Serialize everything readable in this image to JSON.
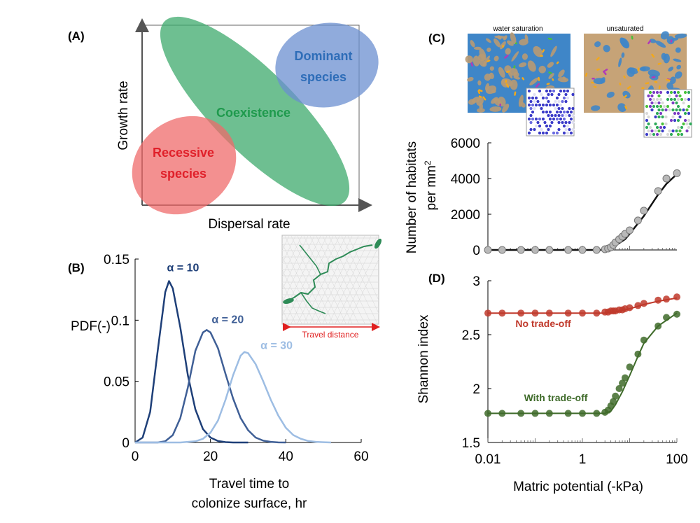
{
  "chart_data": [
    {
      "type": "concept-diagram",
      "panel": "(A)",
      "xlabel": "Dispersal rate",
      "ylabel": "Growth rate",
      "regions": [
        {
          "label": "Recessive species",
          "color": "#ef6b6b"
        },
        {
          "label": "Coexistence",
          "color": "#3daa6c"
        },
        {
          "label": "Dominant species",
          "color": "#6b8fd0"
        }
      ],
      "region_text_colors": [
        "#e0202a",
        "#1f9a4d",
        "#2e6db8"
      ]
    },
    {
      "type": "line",
      "panel": "(B)",
      "ylabel": "PDF(-)",
      "xlabel_line1": "Travel time to",
      "xlabel_line2": "colonize surface, hr",
      "xlim": [
        0,
        60
      ],
      "ylim": [
        0,
        0.15
      ],
      "xticks": [
        "0",
        "20",
        "40",
        "60"
      ],
      "yticks": [
        "0",
        "0.05",
        "0.1",
        "0.15"
      ],
      "inset_label": "Travel distance",
      "series": [
        {
          "name": "α = 10",
          "mean": 9,
          "peak": 0.132,
          "color": "#1e3f78",
          "x": [
            0,
            2,
            4,
            6,
            8,
            9,
            10,
            12,
            14,
            16,
            18,
            20,
            22,
            24,
            26,
            28,
            30
          ],
          "y": [
            0,
            0.004,
            0.025,
            0.075,
            0.123,
            0.132,
            0.126,
            0.094,
            0.055,
            0.027,
            0.011,
            0.004,
            0.0012,
            0.0003,
            0,
            0,
            0
          ]
        },
        {
          "name": "α = 20",
          "mean": 19,
          "peak": 0.092,
          "color": "#3f5f96",
          "x": [
            0,
            6,
            8,
            10,
            12,
            14,
            16,
            18,
            19,
            20,
            22,
            24,
            26,
            28,
            30,
            32,
            34,
            36,
            38,
            40
          ],
          "y": [
            0,
            0,
            0.001,
            0.006,
            0.02,
            0.045,
            0.075,
            0.09,
            0.092,
            0.09,
            0.077,
            0.056,
            0.036,
            0.02,
            0.01,
            0.004,
            0.0015,
            0.0005,
            0.0001,
            0
          ]
        },
        {
          "name": "α = 30",
          "mean": 29,
          "peak": 0.074,
          "color": "#9dbde3",
          "x": [
            0,
            12,
            16,
            18,
            20,
            22,
            24,
            26,
            28,
            29,
            30,
            32,
            34,
            36,
            38,
            40,
            42,
            44,
            46,
            48,
            50,
            52
          ],
          "y": [
            0,
            0,
            0.001,
            0.003,
            0.008,
            0.018,
            0.035,
            0.055,
            0.071,
            0.074,
            0.073,
            0.064,
            0.05,
            0.035,
            0.022,
            0.012,
            0.006,
            0.003,
            0.0012,
            0.0005,
            0.0002,
            0
          ]
        }
      ]
    },
    {
      "type": "scatter+line",
      "panel": "(C)",
      "ylabel_line1": "Number of habitats",
      "ylabel_line2": "per mm",
      "ylabel_sup": "2",
      "ylim": [
        0,
        6000
      ],
      "yticks": [
        "0",
        "2000",
        "4000",
        "6000"
      ],
      "image_titles": [
        "water saturation",
        "unsaturated"
      ],
      "points_x": [
        0.01,
        0.02,
        0.05,
        0.1,
        0.2,
        0.5,
        1,
        2,
        3,
        3.5,
        4,
        4.5,
        5,
        6,
        7,
        8,
        10,
        15,
        20,
        40,
        60,
        100
      ],
      "points_y": [
        0,
        0,
        0,
        0,
        0,
        0,
        0,
        0,
        40,
        80,
        150,
        280,
        420,
        600,
        750,
        900,
        1100,
        1650,
        2200,
        3300,
        4000,
        4300
      ],
      "fit_x": [
        0.01,
        3,
        5,
        8,
        10,
        20,
        40,
        60,
        100
      ],
      "fit_y": [
        0,
        0,
        250,
        600,
        900,
        1900,
        3100,
        3700,
        4250
      ]
    },
    {
      "type": "scatter+line",
      "panel": "(D)",
      "xlabel": "Matric potential (-kPa)",
      "ylabel": "Shannon index",
      "xscale": "log",
      "xlim": [
        0.01,
        100
      ],
      "ylim": [
        1.5,
        3
      ],
      "xticks": [
        "0.01",
        "1",
        "100"
      ],
      "yticks": [
        "1.5",
        "2",
        "2.5",
        "3"
      ],
      "series": [
        {
          "name": "No trade-off",
          "color": "#c0392b",
          "points_x": [
            0.01,
            0.02,
            0.05,
            0.1,
            0.2,
            0.5,
            1,
            2,
            3,
            3.5,
            4,
            4.5,
            5,
            6,
            7,
            8,
            10,
            15,
            20,
            40,
            60,
            100
          ],
          "points_y": [
            2.7,
            2.7,
            2.7,
            2.7,
            2.7,
            2.7,
            2.7,
            2.7,
            2.71,
            2.71,
            2.72,
            2.72,
            2.72,
            2.73,
            2.73,
            2.74,
            2.75,
            2.77,
            2.79,
            2.82,
            2.83,
            2.85
          ],
          "fit_x": [
            0.01,
            3,
            5,
            10,
            20,
            40,
            100
          ],
          "fit_y": [
            2.7,
            2.7,
            2.71,
            2.74,
            2.78,
            2.81,
            2.84
          ]
        },
        {
          "name": "With trade-off",
          "color": "#3f6b2a",
          "points_x": [
            0.01,
            0.02,
            0.05,
            0.1,
            0.2,
            0.5,
            1,
            2,
            3,
            3.5,
            4,
            4.5,
            5,
            6,
            7,
            8,
            10,
            15,
            20,
            40,
            60,
            100
          ],
          "points_y": [
            1.77,
            1.77,
            1.77,
            1.77,
            1.77,
            1.77,
            1.77,
            1.77,
            1.78,
            1.8,
            1.84,
            1.88,
            1.93,
            2.0,
            2.05,
            2.1,
            2.2,
            2.32,
            2.45,
            2.58,
            2.66,
            2.69
          ],
          "fit_x": [
            0.01,
            3,
            4,
            5,
            7,
            10,
            15,
            20,
            40,
            100
          ],
          "fit_y": [
            1.77,
            1.77,
            1.79,
            1.85,
            1.97,
            2.12,
            2.3,
            2.42,
            2.58,
            2.7
          ]
        }
      ]
    }
  ]
}
